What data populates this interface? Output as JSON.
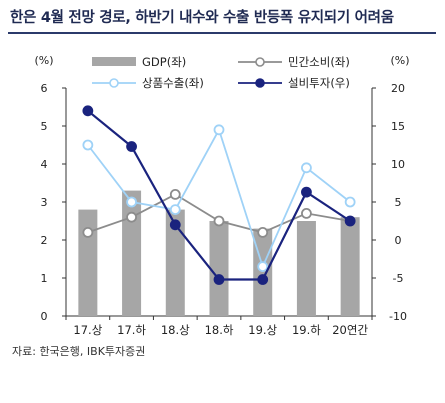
{
  "title": "한은 4월 전망 경로, 하반기 내수와 수출 반등폭 유지되기 어려움",
  "source": "자료: 한국은행, IBK투자증권",
  "chart_data": {
    "type": "bar+line",
    "categories": [
      "17.상",
      "17.하",
      "18.상",
      "18.하",
      "19.상",
      "19.하",
      "20연간"
    ],
    "left_axis": {
      "unit_label": "(%)",
      "ylim": [
        0,
        6
      ],
      "ticks": [
        0,
        1,
        2,
        3,
        4,
        5,
        6
      ]
    },
    "right_axis": {
      "unit_label": "(%)",
      "ylim": [
        -10,
        20
      ],
      "ticks": [
        -10,
        -5,
        0,
        5,
        10,
        15,
        20
      ]
    },
    "grid": false,
    "legend_position": "top",
    "series": [
      {
        "name": "GDP(좌)",
        "type": "bar",
        "axis": "left",
        "color": "#a6a6a6",
        "values": [
          2.8,
          3.3,
          2.8,
          2.5,
          2.3,
          2.5,
          2.6
        ]
      },
      {
        "name": "민간소비(좌)",
        "type": "line",
        "axis": "left",
        "color": "#8c8c8c",
        "marker_fill": "#ffffff",
        "values": [
          2.2,
          2.6,
          3.2,
          2.5,
          2.2,
          2.7,
          2.5
        ]
      },
      {
        "name": "상품수출(좌)",
        "type": "line",
        "axis": "left",
        "color": "#9fd2f7",
        "marker_fill": "#ffffff",
        "values": [
          4.5,
          3.0,
          2.8,
          4.9,
          1.3,
          3.9,
          3.0
        ]
      },
      {
        "name": "설비투자(우)",
        "type": "line",
        "axis": "right",
        "color": "#1a237e",
        "marker_fill": "#1a237e",
        "values": [
          17.0,
          12.3,
          2.0,
          -5.2,
          -5.2,
          6.3,
          2.5
        ]
      }
    ]
  }
}
